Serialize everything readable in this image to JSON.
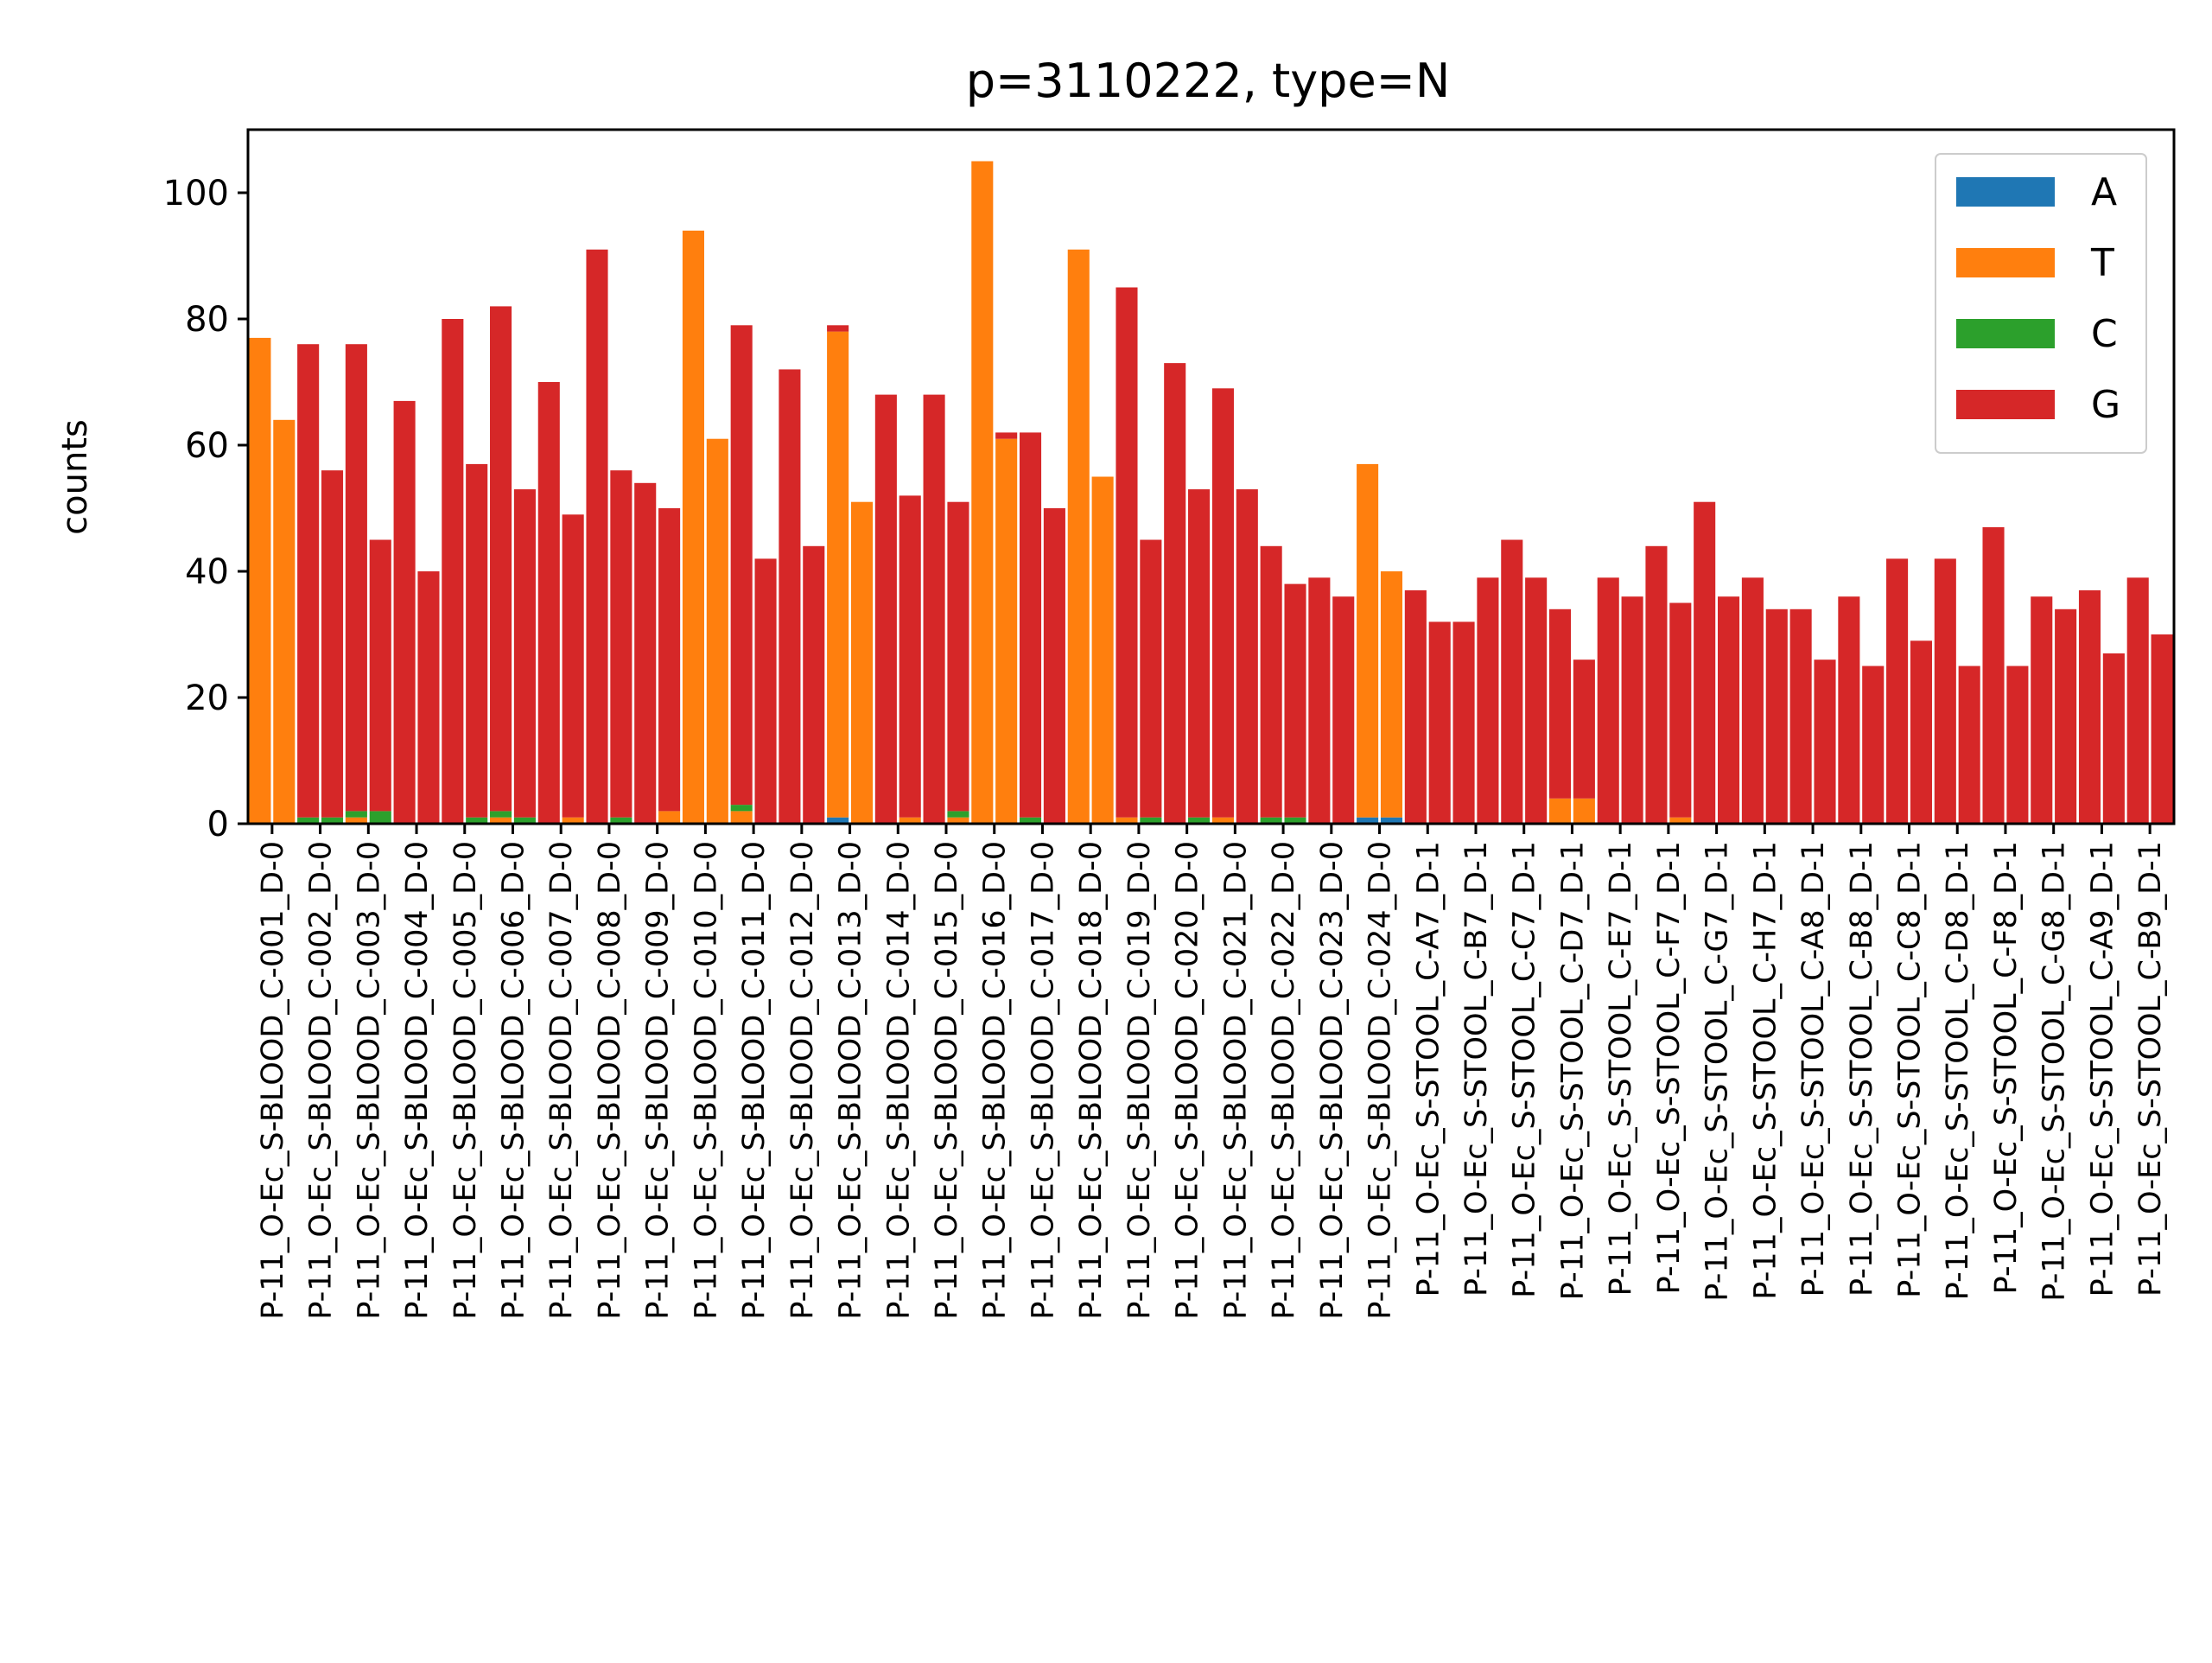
{
  "chart_data": {
    "type": "bar",
    "stacked": true,
    "title": "p=3110222, type=N",
    "ylabel": "counts",
    "xlabel": "",
    "ylim": [
      0,
      110
    ],
    "yticks": [
      0,
      20,
      40,
      60,
      80,
      100
    ],
    "legend_placement": "top-right",
    "grid": false,
    "categories": [
      "P-11_O-Ec_S-BLOOD_C-001_D-0",
      "P-11_O-Ec_S-BLOOD_C-002_D-0",
      "P-11_O-Ec_S-BLOOD_C-003_D-0",
      "P-11_O-Ec_S-BLOOD_C-004_D-0",
      "P-11_O-Ec_S-BLOOD_C-005_D-0",
      "P-11_O-Ec_S-BLOOD_C-006_D-0",
      "P-11_O-Ec_S-BLOOD_C-007_D-0",
      "P-11_O-Ec_S-BLOOD_C-008_D-0",
      "P-11_O-Ec_S-BLOOD_C-009_D-0",
      "P-11_O-Ec_S-BLOOD_C-010_D-0",
      "P-11_O-Ec_S-BLOOD_C-011_D-0",
      "P-11_O-Ec_S-BLOOD_C-012_D-0",
      "P-11_O-Ec_S-BLOOD_C-013_D-0",
      "P-11_O-Ec_S-BLOOD_C-014_D-0",
      "P-11_O-Ec_S-BLOOD_C-015_D-0",
      "P-11_O-Ec_S-BLOOD_C-016_D-0",
      "P-11_O-Ec_S-BLOOD_C-017_D-0",
      "P-11_O-Ec_S-BLOOD_C-018_D-0",
      "P-11_O-Ec_S-BLOOD_C-019_D-0",
      "P-11_O-Ec_S-BLOOD_C-020_D-0",
      "P-11_O-Ec_S-BLOOD_C-021_D-0",
      "P-11_O-Ec_S-BLOOD_C-022_D-0",
      "P-11_O-Ec_S-BLOOD_C-023_D-0",
      "P-11_O-Ec_S-BLOOD_C-024_D-0",
      "P-11_O-Ec_S-STOOL_C-A7_D-1",
      "P-11_O-Ec_S-STOOL_C-B7_D-1",
      "P-11_O-Ec_S-STOOL_C-C7_D-1",
      "P-11_O-Ec_S-STOOL_C-D7_D-1",
      "P-11_O-Ec_S-STOOL_C-E7_D-1",
      "P-11_O-Ec_S-STOOL_C-F7_D-1",
      "P-11_O-Ec_S-STOOL_C-G7_D-1",
      "P-11_O-Ec_S-STOOL_C-H7_D-1",
      "P-11_O-Ec_S-STOOL_C-A8_D-1",
      "P-11_O-Ec_S-STOOL_C-B8_D-1",
      "P-11_O-Ec_S-STOOL_C-C8_D-1",
      "P-11_O-Ec_S-STOOL_C-D8_D-1",
      "P-11_O-Ec_S-STOOL_C-F8_D-1",
      "P-11_O-Ec_S-STOOL_C-G8_D-1",
      "P-11_O-Ec_S-STOOL_C-A9_D-1",
      "P-11_O-Ec_S-STOOL_C-B9_D-1"
    ],
    "pair_labels": [
      "",
      ""
    ],
    "pairs_note_hidden": true,
    "groups": [
      [
        {
          "A": 0,
          "T": 77,
          "C": 0,
          "G": 0
        },
        {
          "A": 0,
          "T": 64,
          "C": 0,
          "G": 0
        }
      ],
      [
        {
          "A": 0,
          "T": 0,
          "C": 1,
          "G": 75
        },
        {
          "A": 0,
          "T": 0,
          "C": 1,
          "G": 55
        }
      ],
      [
        {
          "A": 0,
          "T": 1,
          "C": 1,
          "G": 74
        },
        {
          "A": 0,
          "T": 0,
          "C": 2,
          "G": 43
        }
      ],
      [
        {
          "A": 0,
          "T": 0,
          "C": 0,
          "G": 67
        },
        {
          "A": 0,
          "T": 0,
          "C": 0,
          "G": 40
        }
      ],
      [
        {
          "A": 0,
          "T": 0,
          "C": 0,
          "G": 80
        },
        {
          "A": 0,
          "T": 0,
          "C": 1,
          "G": 56
        }
      ],
      [
        {
          "A": 0,
          "T": 1,
          "C": 1,
          "G": 80
        },
        {
          "A": 0,
          "T": 0,
          "C": 1,
          "G": 52
        }
      ],
      [
        {
          "A": 0,
          "T": 0,
          "C": 0,
          "G": 70
        },
        {
          "A": 0,
          "T": 1,
          "C": 0,
          "G": 48
        }
      ],
      [
        {
          "A": 0,
          "T": 0,
          "C": 0,
          "G": 91
        },
        {
          "A": 0,
          "T": 0,
          "C": 1,
          "G": 55
        }
      ],
      [
        {
          "A": 0,
          "T": 0,
          "C": 0,
          "G": 54
        },
        {
          "A": 0,
          "T": 2,
          "C": 0,
          "G": 48
        }
      ],
      [
        {
          "A": 0,
          "T": 94,
          "C": 0,
          "G": 0
        },
        {
          "A": 0,
          "T": 61,
          "C": 0,
          "G": 0
        }
      ],
      [
        {
          "A": 0,
          "T": 2,
          "C": 1,
          "G": 76
        },
        {
          "A": 0,
          "T": 0,
          "C": 0,
          "G": 42
        }
      ],
      [
        {
          "A": 0,
          "T": 0,
          "C": 0,
          "G": 72
        },
        {
          "A": 0,
          "T": 0,
          "C": 0,
          "G": 44
        }
      ],
      [
        {
          "A": 1,
          "T": 77,
          "C": 0,
          "G": 1
        },
        {
          "A": 0,
          "T": 51,
          "C": 0,
          "G": 0
        }
      ],
      [
        {
          "A": 0,
          "T": 0,
          "C": 0,
          "G": 68
        },
        {
          "A": 0,
          "T": 1,
          "C": 0,
          "G": 51
        }
      ],
      [
        {
          "A": 0,
          "T": 0,
          "C": 0,
          "G": 68
        },
        {
          "A": 0,
          "T": 1,
          "C": 1,
          "G": 49
        }
      ],
      [
        {
          "A": 0,
          "T": 105,
          "C": 0,
          "G": 0
        },
        {
          "A": 0,
          "T": 61,
          "C": 0,
          "G": 1
        }
      ],
      [
        {
          "A": 0,
          "T": 0,
          "C": 1,
          "G": 61
        },
        {
          "A": 0,
          "T": 0,
          "C": 0,
          "G": 50
        }
      ],
      [
        {
          "A": 0,
          "T": 91,
          "C": 0,
          "G": 0
        },
        {
          "A": 0,
          "T": 55,
          "C": 0,
          "G": 0
        }
      ],
      [
        {
          "A": 0,
          "T": 1,
          "C": 0,
          "G": 84
        },
        {
          "A": 0,
          "T": 0,
          "C": 1,
          "G": 44
        }
      ],
      [
        {
          "A": 0,
          "T": 0,
          "C": 0,
          "G": 73
        },
        {
          "A": 0,
          "T": 0,
          "C": 1,
          "G": 52
        }
      ],
      [
        {
          "A": 0,
          "T": 1,
          "C": 0,
          "G": 68
        },
        {
          "A": 0,
          "T": 0,
          "C": 0,
          "G": 53
        }
      ],
      [
        {
          "A": 0,
          "T": 0,
          "C": 1,
          "G": 43
        },
        {
          "A": 0,
          "T": 0,
          "C": 1,
          "G": 37
        }
      ],
      [
        {
          "A": 0,
          "T": 0,
          "C": 0,
          "G": 39
        },
        {
          "A": 0,
          "T": 0,
          "C": 0,
          "G": 36
        }
      ],
      [
        {
          "A": 1,
          "T": 56,
          "C": 0,
          "G": 0
        },
        {
          "A": 1,
          "T": 39,
          "C": 0,
          "G": 0
        }
      ],
      [
        {
          "A": 0,
          "T": 0,
          "C": 0,
          "G": 37
        },
        {
          "A": 0,
          "T": 0,
          "C": 0,
          "G": 32
        }
      ],
      [
        {
          "A": 0,
          "T": 0,
          "C": 0,
          "G": 32
        },
        {
          "A": 0,
          "T": 0,
          "C": 0,
          "G": 39
        }
      ],
      [
        {
          "A": 0,
          "T": 0,
          "C": 0,
          "G": 45
        },
        {
          "A": 0,
          "T": 0,
          "C": 0,
          "G": 39
        }
      ],
      [
        {
          "A": 0,
          "T": 4,
          "C": 0,
          "G": 30
        },
        {
          "A": 0,
          "T": 4,
          "C": 0,
          "G": 22
        }
      ],
      [
        {
          "A": 0,
          "T": 0,
          "C": 0,
          "G": 39
        },
        {
          "A": 0,
          "T": 0,
          "C": 0,
          "G": 36
        }
      ],
      [
        {
          "A": 0,
          "T": 0,
          "C": 0,
          "G": 44
        },
        {
          "A": 0,
          "T": 1,
          "C": 0,
          "G": 34
        }
      ],
      [
        {
          "A": 0,
          "T": 0,
          "C": 0,
          "G": 51
        },
        {
          "A": 0,
          "T": 0,
          "C": 0,
          "G": 36
        }
      ],
      [
        {
          "A": 0,
          "T": 0,
          "C": 0,
          "G": 39
        },
        {
          "A": 0,
          "T": 0,
          "C": 0,
          "G": 34
        }
      ],
      [
        {
          "A": 0,
          "T": 0,
          "C": 0,
          "G": 34
        },
        {
          "A": 0,
          "T": 0,
          "C": 0,
          "G": 26
        }
      ],
      [
        {
          "A": 0,
          "T": 0,
          "C": 0,
          "G": 36
        },
        {
          "A": 0,
          "T": 0,
          "C": 0,
          "G": 25
        }
      ],
      [
        {
          "A": 0,
          "T": 0,
          "C": 0,
          "G": 42
        },
        {
          "A": 0,
          "T": 0,
          "C": 0,
          "G": 29
        }
      ],
      [
        {
          "A": 0,
          "T": 0,
          "C": 0,
          "G": 42
        },
        {
          "A": 0,
          "T": 0,
          "C": 0,
          "G": 25
        }
      ],
      [
        {
          "A": 0,
          "T": 0,
          "C": 0,
          "G": 47
        },
        {
          "A": 0,
          "T": 0,
          "C": 0,
          "G": 25
        }
      ],
      [
        {
          "A": 0,
          "T": 0,
          "C": 0,
          "G": 36
        },
        {
          "A": 0,
          "T": 0,
          "C": 0,
          "G": 34
        }
      ],
      [
        {
          "A": 0,
          "T": 0,
          "C": 0,
          "G": 37
        },
        {
          "A": 0,
          "T": 0,
          "C": 0,
          "G": 27
        }
      ],
      [
        {
          "A": 0,
          "T": 0,
          "C": 0,
          "G": 39
        },
        {
          "A": 0,
          "T": 0,
          "C": 0,
          "G": 30
        }
      ]
    ],
    "series": [
      {
        "name": "A",
        "color": "#1f77b4"
      },
      {
        "name": "T",
        "color": "#ff7f0e"
      },
      {
        "name": "C",
        "color": "#2ca02c"
      },
      {
        "name": "G",
        "color": "#d62728"
      }
    ]
  }
}
